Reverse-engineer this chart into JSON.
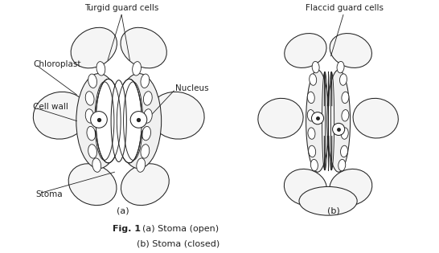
{
  "bg_color": "#ffffff",
  "lc": "#222222",
  "lw": 0.75,
  "fc_epidermal": "#f5f5f5",
  "fc_guard": "#f0f0f0",
  "fc_white": "#ffffff",
  "label_turgid": "Turgid guard cells",
  "label_flaccid": "Flaccid guard cells",
  "label_chloroplast": "Chloroplast",
  "label_nucleus": "Nucleus",
  "label_cell_wall": "Cell wall",
  "label_stoma": "Stoma",
  "label_a": "(a)",
  "label_b": "(b)",
  "caption_bold": "Fig. 1",
  "caption_line1": "  (a) Stoma (open)",
  "caption_line2": "        (b) Stoma (closed)",
  "fs_label": 7.5,
  "fs_caption": 8.0,
  "fs_ab": 8.0
}
